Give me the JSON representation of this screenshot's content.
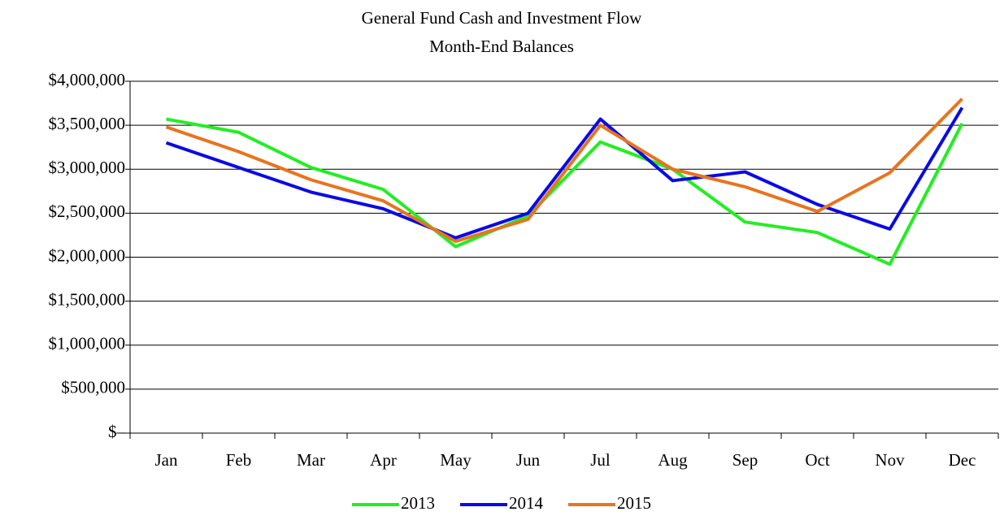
{
  "chart_data": {
    "type": "line",
    "title": "General Fund Cash and Investment Flow",
    "subtitle": "Month-End Balances",
    "categories": [
      "Jan",
      "Feb",
      "Mar",
      "Apr",
      "May",
      "Jun",
      "Jul",
      "Aug",
      "Sep",
      "Oct",
      "Nov",
      "Dec"
    ],
    "series": [
      {
        "name": "2013",
        "color": "#22ee22",
        "values": [
          3570000,
          3420000,
          3020000,
          2770000,
          2120000,
          2470000,
          3310000,
          3000000,
          2400000,
          2280000,
          1920000,
          3520000
        ]
      },
      {
        "name": "2014",
        "color": "#0a0ae6",
        "values": [
          3300000,
          3020000,
          2740000,
          2550000,
          2220000,
          2500000,
          3570000,
          2870000,
          2970000,
          2600000,
          2320000,
          3700000
        ]
      },
      {
        "name": "2015",
        "color": "#e8741e",
        "values": [
          3480000,
          3200000,
          2880000,
          2640000,
          2180000,
          2430000,
          3500000,
          3000000,
          2800000,
          2520000,
          2960000,
          3800000
        ]
      }
    ],
    "ylim": [
      0,
      4000000
    ],
    "yticks": [
      {
        "value": 0,
        "label": "$–"
      },
      {
        "value": 500000,
        "label": "$500,000"
      },
      {
        "value": 1000000,
        "label": "$1,000,000"
      },
      {
        "value": 1500000,
        "label": "$1,500,000"
      },
      {
        "value": 2000000,
        "label": "$2,000,000"
      },
      {
        "value": 2500000,
        "label": "$2,500,000"
      },
      {
        "value": 3000000,
        "label": "$3,000,000"
      },
      {
        "value": 3500000,
        "label": "$3,500,000"
      },
      {
        "value": 4000000,
        "label": "$4,000,000"
      }
    ],
    "grid": true,
    "legend": "bottom"
  }
}
